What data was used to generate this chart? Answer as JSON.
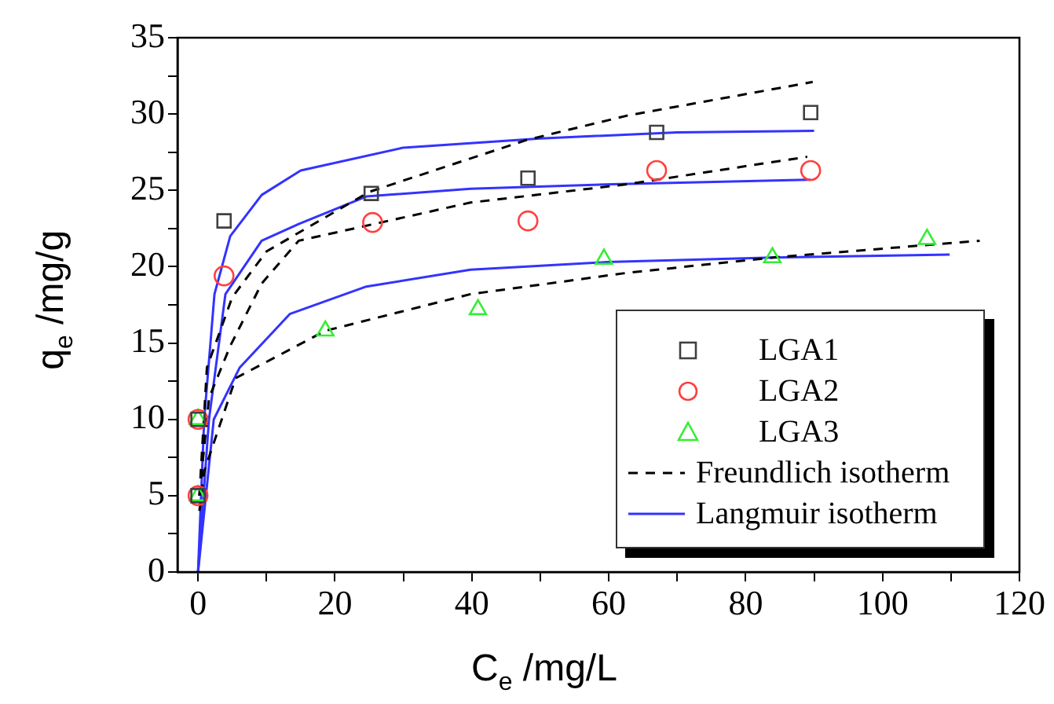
{
  "chart_data": {
    "type": "scatter",
    "xlabel": "C$_{e}$ /mg/L",
    "ylabel": "q$_{e}$ /mg/g",
    "xlim": [
      -3,
      120
    ],
    "ylim": [
      0,
      35
    ],
    "xticks": [
      0,
      {
        "value": 10,
        "label": null
      },
      20,
      {
        "value": 30,
        "label": null
      },
      40,
      {
        "value": 50,
        "label": null
      },
      60,
      {
        "value": 70,
        "label": null
      },
      80,
      {
        "value": 90,
        "label": null
      },
      100,
      {
        "value": 110,
        "label": null
      },
      120
    ],
    "yticks": [
      0,
      {
        "value": 2.5,
        "label": null
      },
      5,
      {
        "value": 7.5,
        "label": null
      },
      10,
      {
        "value": 12.5,
        "label": null
      },
      15,
      {
        "value": 17.5,
        "label": null
      },
      20,
      {
        "value": 22.5,
        "label": null
      },
      25,
      {
        "value": 27.5,
        "label": null
      },
      30,
      {
        "value": 32.5,
        "label": null
      },
      35
    ],
    "grid": false,
    "legend": "bottom right",
    "series": [
      {
        "name": "LGA1",
        "marker": "square",
        "color": "#404040",
        "x": [
          0,
          0,
          3.8,
          25.3,
          48.2,
          67,
          89.5
        ],
        "values": [
          5,
          10,
          23,
          24.8,
          25.8,
          28.8,
          30.1
        ]
      },
      {
        "name": "LGA2",
        "marker": "circle",
        "color": "#ff4040",
        "x": [
          0,
          0,
          3.8,
          25.5,
          48.2,
          67,
          89.5
        ],
        "values": [
          5,
          10,
          19.4,
          22.9,
          23,
          26.3,
          26.3
        ]
      },
      {
        "name": "LGA3",
        "marker": "triangle",
        "color": "#33ee33",
        "x": [
          0,
          0,
          18.6,
          40.9,
          59.3,
          83.9,
          106.5
        ],
        "values": [
          5,
          10,
          15.8,
          17.2,
          20.5,
          20.6,
          21.8
        ]
      },
      {
        "name": "Freundlich isotherm",
        "type": "line",
        "marker": "none",
        "line_style": "dashed",
        "color": "#000000",
        "x": [
          0.2,
          1.3,
          5,
          10,
          25,
          48,
          62.7,
          89.8
        ],
        "values": [
          5,
          13.4,
          18,
          21,
          24.9,
          28.3,
          29.9,
          32.1
        ]
      },
      {
        "type": "line",
        "marker": "none",
        "line_style": "dashed",
        "color": "#000000",
        "x": [
          0.2,
          1.6,
          4.7,
          9.3,
          14.7,
          39.8,
          62.7,
          89
        ],
        "values": [
          5,
          11.4,
          14.8,
          18.9,
          21.7,
          24.2,
          25.4,
          27.2
        ]
      },
      {
        "type": "line",
        "marker": "none",
        "line_style": "dashed",
        "color": "#000000",
        "x": [
          0.2,
          0.9,
          5.5,
          18.6,
          39.8,
          62.7,
          84,
          114.2
        ],
        "values": [
          4,
          6.6,
          12.7,
          15.8,
          18.2,
          19.6,
          20.6,
          21.7
        ]
      },
      {
        "name": "Langmuir isotherm",
        "type": "line",
        "marker": "none",
        "line_style": "solid",
        "color": "#3333ff",
        "x": [
          0,
          0.9,
          2.4,
          4.7,
          9.3,
          15,
          30,
          50,
          70,
          90
        ],
        "values": [
          0,
          10,
          18.2,
          22,
          24.7,
          26.3,
          27.8,
          28.4,
          28.8,
          28.9
        ]
      },
      {
        "type": "line",
        "marker": "none",
        "line_style": "solid",
        "color": "#3333ff",
        "x": [
          0,
          1.6,
          4,
          9.3,
          14.7,
          24.6,
          39.8,
          60.5,
          89.5
        ],
        "values": [
          0,
          10,
          18.2,
          21.7,
          22.8,
          24.6,
          25.1,
          25.4,
          25.7
        ]
      },
      {
        "type": "line",
        "marker": "none",
        "line_style": "solid",
        "color": "#3333ff",
        "x": [
          0,
          2.3,
          6.1,
          13.4,
          24.6,
          39.8,
          59.7,
          84,
          109.8
        ],
        "values": [
          0,
          10,
          13.4,
          16.9,
          18.7,
          19.8,
          20.3,
          20.6,
          20.8
        ]
      }
    ]
  }
}
